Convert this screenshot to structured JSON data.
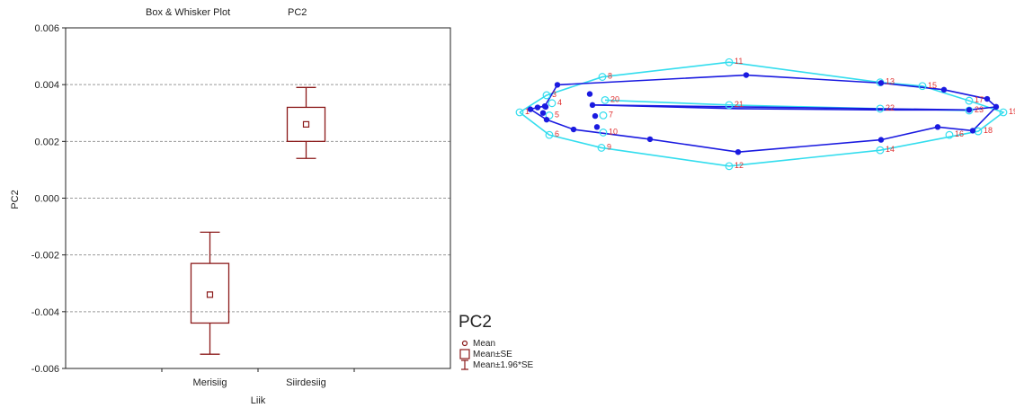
{
  "chart_data": [
    {
      "type": "box",
      "title": "Box & Whisker Plot",
      "subtitle": "PC2",
      "xlabel": "Liik",
      "ylabel": "PC2",
      "ylim": [
        -0.006,
        0.006
      ],
      "yticks": [
        "0.006",
        "0.004",
        "0.002",
        "0.000",
        "-0.002",
        "-0.004",
        "-0.006"
      ],
      "ytick_values": [
        0.006,
        0.004,
        0.002,
        0.0,
        -0.002,
        -0.004,
        -0.006
      ],
      "grid": true,
      "categories": [
        "Merisiig",
        "Siirdesiig"
      ],
      "groups": [
        {
          "category": "Merisiig",
          "mean": -0.0034,
          "se_low": -0.0044,
          "se_high": -0.0023,
          "ci_low": -0.0055,
          "ci_high": -0.0012
        },
        {
          "category": "Siirdesiig",
          "mean": 0.0026,
          "se_low": 0.002,
          "se_high": 0.0032,
          "ci_low": 0.0014,
          "ci_high": 0.0039
        }
      ],
      "color": "#8b1a1a"
    },
    {
      "type": "scatter",
      "title": "PC2",
      "legend": [
        "Mean",
        "Mean±SE",
        "Mean±1.96*SE"
      ],
      "series": [
        {
          "name": "",
          "color": "#33ddee",
          "points": [
            {
              "label": "1",
              "x": 0.0,
              "y": 0.0
            },
            {
              "label": "3",
              "x": 0.3,
              "y": 0.28
            },
            {
              "label": "4",
              "x": 0.36,
              "y": 0.15
            },
            {
              "label": "5",
              "x": 0.33,
              "y": -0.05
            },
            {
              "label": "6",
              "x": 0.33,
              "y": -0.37
            },
            {
              "label": "7",
              "x": 0.93,
              "y": -0.05
            },
            {
              "label": "8",
              "x": 0.92,
              "y": 0.58
            },
            {
              "label": "9",
              "x": 0.91,
              "y": -0.58
            },
            {
              "label": "10",
              "x": 0.93,
              "y": -0.33
            },
            {
              "label": "11",
              "x": 2.33,
              "y": 0.82
            },
            {
              "label": "12",
              "x": 2.33,
              "y": -0.88
            },
            {
              "label": "13",
              "x": 4.01,
              "y": 0.49
            },
            {
              "label": "14",
              "x": 4.01,
              "y": -0.62
            },
            {
              "label": "15",
              "x": 4.48,
              "y": 0.43
            },
            {
              "label": "16",
              "x": 4.78,
              "y": -0.37
            },
            {
              "label": "17",
              "x": 5.0,
              "y": 0.19
            },
            {
              "label": "18",
              "x": 5.1,
              "y": -0.31
            },
            {
              "label": "19",
              "x": 5.38,
              "y": 0.0
            },
            {
              "label": "20",
              "x": 0.95,
              "y": 0.2
            },
            {
              "label": "21",
              "x": 2.33,
              "y": 0.12
            },
            {
              "label": "22",
              "x": 4.01,
              "y": 0.06
            },
            {
              "label": "23",
              "x": 5.0,
              "y": 0.03
            }
          ]
        },
        {
          "name": "",
          "color": "#1a1ae0",
          "points": [
            {
              "x": 0.12,
              "y": 0.05
            },
            {
              "x": 0.2,
              "y": 0.08
            },
            {
              "x": 0.28,
              "y": 0.1
            },
            {
              "x": 0.3,
              "y": -0.12
            },
            {
              "x": 0.26,
              "y": -0.01
            },
            {
              "x": 0.29,
              "y": 0.09
            },
            {
              "x": 0.42,
              "y": 0.45
            },
            {
              "x": 0.78,
              "y": 0.3
            },
            {
              "x": 0.81,
              "y": 0.12
            },
            {
              "x": 0.84,
              "y": -0.06
            },
            {
              "x": 0.86,
              "y": -0.24
            },
            {
              "x": 0.6,
              "y": -0.28
            },
            {
              "x": 1.45,
              "y": -0.44
            },
            {
              "x": 2.43,
              "y": -0.65
            },
            {
              "x": 4.02,
              "y": -0.45
            },
            {
              "x": 4.65,
              "y": -0.24
            },
            {
              "x": 5.04,
              "y": -0.3
            },
            {
              "x": 5.0,
              "y": 0.04
            },
            {
              "x": 5.3,
              "y": 0.09
            },
            {
              "x": 2.52,
              "y": 0.61
            },
            {
              "x": 4.02,
              "y": 0.48
            },
            {
              "x": 4.72,
              "y": 0.37
            },
            {
              "x": 5.2,
              "y": 0.22
            }
          ]
        }
      ]
    }
  ]
}
